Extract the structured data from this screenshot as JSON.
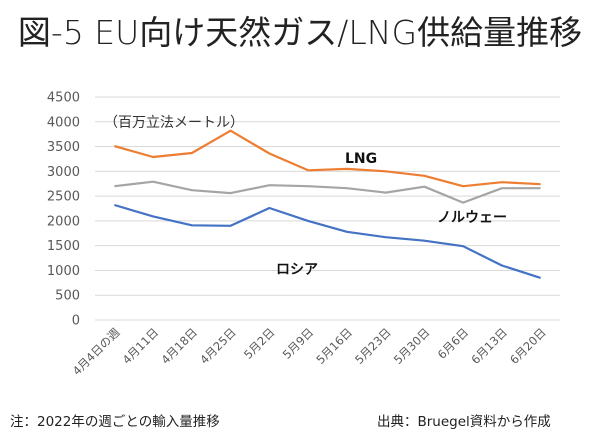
{
  "title": "図-5 EU向け天然ガス/LNG供給量推移",
  "note": "注：2022年の週ごとの輸入量推移",
  "source": "出典：Bruegel資料から作成",
  "chart_data": {
    "type": "line",
    "title": "図-5 EU向け天然ガス/LNG供給量推移",
    "unit_label": "（百万立法メートル）",
    "xlabel": "",
    "ylabel": "（百万立法メートル）",
    "ylim": [
      0,
      4500
    ],
    "yticks": [
      0,
      500,
      1000,
      1500,
      2000,
      2500,
      3000,
      3500,
      4000,
      4500
    ],
    "grid": true,
    "legend": "inline labels",
    "categories": [
      "4月4日の週",
      "4月11日",
      "4月18日",
      "4月25日",
      "5月2日",
      "5月9日",
      "5月16日",
      "5月23日",
      "5月30日",
      "6月6日",
      "6月13日",
      "6月20日"
    ],
    "series": [
      {
        "name": "LNG",
        "color": "#ED7D31",
        "values": [
          3510,
          3290,
          3370,
          3820,
          3360,
          3020,
          3050,
          3000,
          2910,
          2700,
          2780,
          2740
        ]
      },
      {
        "name": "ノルウェー",
        "color": "#A5A5A5",
        "values": [
          2700,
          2790,
          2620,
          2560,
          2720,
          2700,
          2660,
          2570,
          2690,
          2370,
          2660,
          2660
        ]
      },
      {
        "name": "ロシア",
        "color": "#4472C4",
        "values": [
          2320,
          2090,
          1910,
          1900,
          2260,
          2000,
          1780,
          1670,
          1600,
          1490,
          1100,
          850
        ]
      }
    ]
  }
}
